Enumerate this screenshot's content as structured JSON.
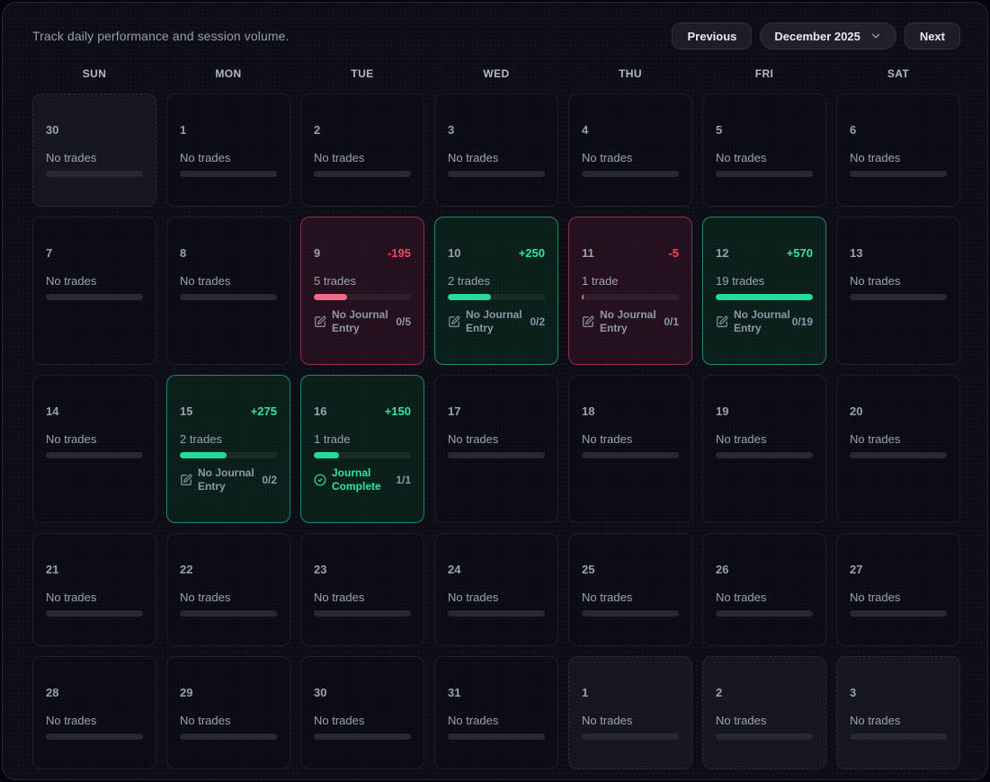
{
  "header": {
    "subtitle": "Track daily performance and session volume.",
    "previous_label": "Previous",
    "month_label": "December 2025",
    "next_label": "Next"
  },
  "weekdays": [
    "SUN",
    "MON",
    "TUE",
    "WED",
    "THU",
    "FRI",
    "SAT"
  ],
  "labels": {
    "no_trades": "No trades",
    "no_journal": "No Journal Entry",
    "journal_complete": "Journal Complete"
  },
  "colors": {
    "win_accent": "#2ee6a0",
    "loss_accent": "#fb4265",
    "win_bar": "#24dc97",
    "loss_bar": "#f2678a",
    "cell_bg": "#0b0b15",
    "win_cell_bg": "#0b1d1a",
    "loss_cell_bg": "#23101e"
  },
  "days": [
    {
      "day": "30",
      "out": true
    },
    {
      "day": "1"
    },
    {
      "day": "2"
    },
    {
      "day": "3"
    },
    {
      "day": "4"
    },
    {
      "day": "5"
    },
    {
      "day": "6"
    },
    {
      "day": "7"
    },
    {
      "day": "8"
    },
    {
      "day": "9",
      "kind": "loss",
      "pnl": "-195",
      "trades": "5 trades",
      "fill": 34,
      "journal": "No Journal Entry",
      "frac": "0/5",
      "complete": false
    },
    {
      "day": "10",
      "kind": "win",
      "pnl": "+250",
      "trades": "2 trades",
      "fill": 44,
      "journal": "No Journal Entry",
      "frac": "0/2",
      "complete": false
    },
    {
      "day": "11",
      "kind": "loss",
      "pnl": "-5",
      "trades": "1 trade",
      "fill": 2,
      "journal": "No Journal Entry",
      "frac": "0/1",
      "complete": false
    },
    {
      "day": "12",
      "kind": "win",
      "pnl": "+570",
      "trades": "19 trades",
      "fill": 100,
      "journal": "No Journal Entry",
      "frac": "0/19",
      "complete": false
    },
    {
      "day": "13"
    },
    {
      "day": "14"
    },
    {
      "day": "15",
      "kind": "win",
      "pnl": "+275",
      "trades": "2 trades",
      "fill": 48,
      "journal": "No Journal Entry",
      "frac": "0/2",
      "complete": false
    },
    {
      "day": "16",
      "kind": "win",
      "pnl": "+150",
      "trades": "1 trade",
      "fill": 26,
      "journal": "Journal Complete",
      "frac": "1/1",
      "complete": true
    },
    {
      "day": "17"
    },
    {
      "day": "18"
    },
    {
      "day": "19"
    },
    {
      "day": "20"
    },
    {
      "day": "21"
    },
    {
      "day": "22"
    },
    {
      "day": "23"
    },
    {
      "day": "24"
    },
    {
      "day": "25"
    },
    {
      "day": "26"
    },
    {
      "day": "27"
    },
    {
      "day": "28"
    },
    {
      "day": "29"
    },
    {
      "day": "30"
    },
    {
      "day": "31"
    },
    {
      "day": "1",
      "out": true
    },
    {
      "day": "2",
      "out": true
    },
    {
      "day": "3",
      "out": true
    }
  ]
}
